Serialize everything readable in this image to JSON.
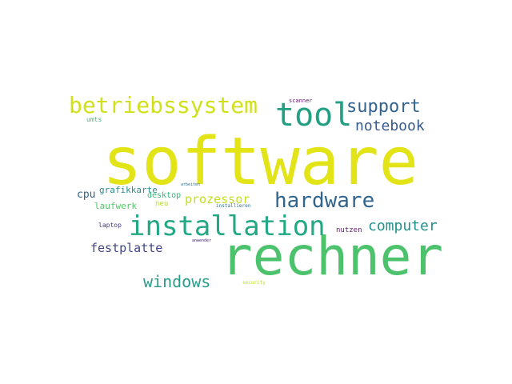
{
  "words": [
    {
      "text": "software",
      "color": "#e2e418"
    },
    {
      "text": "rechner",
      "color": "#4cc26c"
    },
    {
      "text": "installation",
      "color": "#23a884"
    },
    {
      "text": "betriebssystem",
      "color": "#d0e11c"
    },
    {
      "text": "tool",
      "color": "#23a083"
    },
    {
      "text": "hardware",
      "color": "#32658e"
    },
    {
      "text": "support",
      "color": "#33638d"
    },
    {
      "text": "notebook",
      "color": "#37598c"
    },
    {
      "text": "computer",
      "color": "#21918c"
    },
    {
      "text": "windows",
      "color": "#2a9d8a"
    },
    {
      "text": "festplatte",
      "color": "#414487"
    },
    {
      "text": "prozessor",
      "color": "#c2df23"
    },
    {
      "text": "cpu",
      "color": "#33638d"
    },
    {
      "text": "grafikkarte",
      "color": "#2c8c8e"
    },
    {
      "text": "desktop",
      "color": "#35b779"
    },
    {
      "text": "laufwerk",
      "color": "#55c568"
    },
    {
      "text": "neu",
      "color": "#b5de2b"
    },
    {
      "text": "umts",
      "color": "#3aba76"
    },
    {
      "text": "scanner",
      "color": "#6a1a73"
    },
    {
      "text": "arbeiten",
      "color": "#31688e"
    },
    {
      "text": "installieren",
      "color": "#2d718e"
    },
    {
      "text": "laptop",
      "color": "#453882"
    },
    {
      "text": "nutzen",
      "color": "#5e1c6e"
    },
    {
      "text": "anwender",
      "color": "#482677"
    },
    {
      "text": "security",
      "color": "#b8de29"
    }
  ]
}
